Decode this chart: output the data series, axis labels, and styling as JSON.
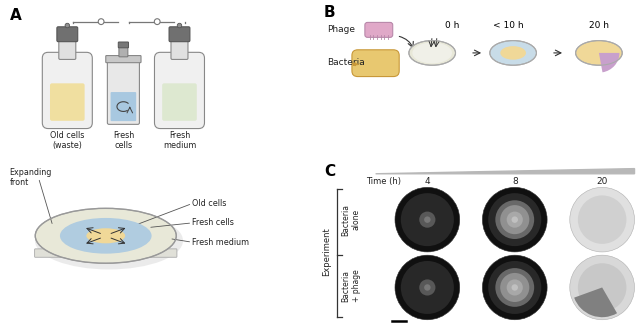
{
  "fig_width": 6.41,
  "fig_height": 3.23,
  "panel_A_label": "A",
  "panel_B_label": "B",
  "panel_C_label": "C",
  "bottle_labels": [
    "Old cells\n(waste)",
    "Fresh\ncells",
    "Fresh\nmedium"
  ],
  "bottle_colors": [
    "#f0dfa0",
    "#a8c8e0",
    "#dde8d0"
  ],
  "bottle_center_color": "#c8e0f0",
  "petri_colors_outer": "#e8e8d8",
  "petri_colors_blue": "#b8d0e8",
  "petri_colors_yellow": "#f0d898",
  "phage_color": "#e0a0c0",
  "bacteria_color": "#e8c870",
  "time_labels": [
    "0 h",
    "< 10 h",
    "20 h"
  ],
  "time_h_label": "Time (h)",
  "time_vals": [
    "4",
    "8",
    "20"
  ],
  "experiment_label": "Experiment",
  "row1_label": "Bacteria\nalone",
  "row2_label": "Bacteria\n+ phage"
}
